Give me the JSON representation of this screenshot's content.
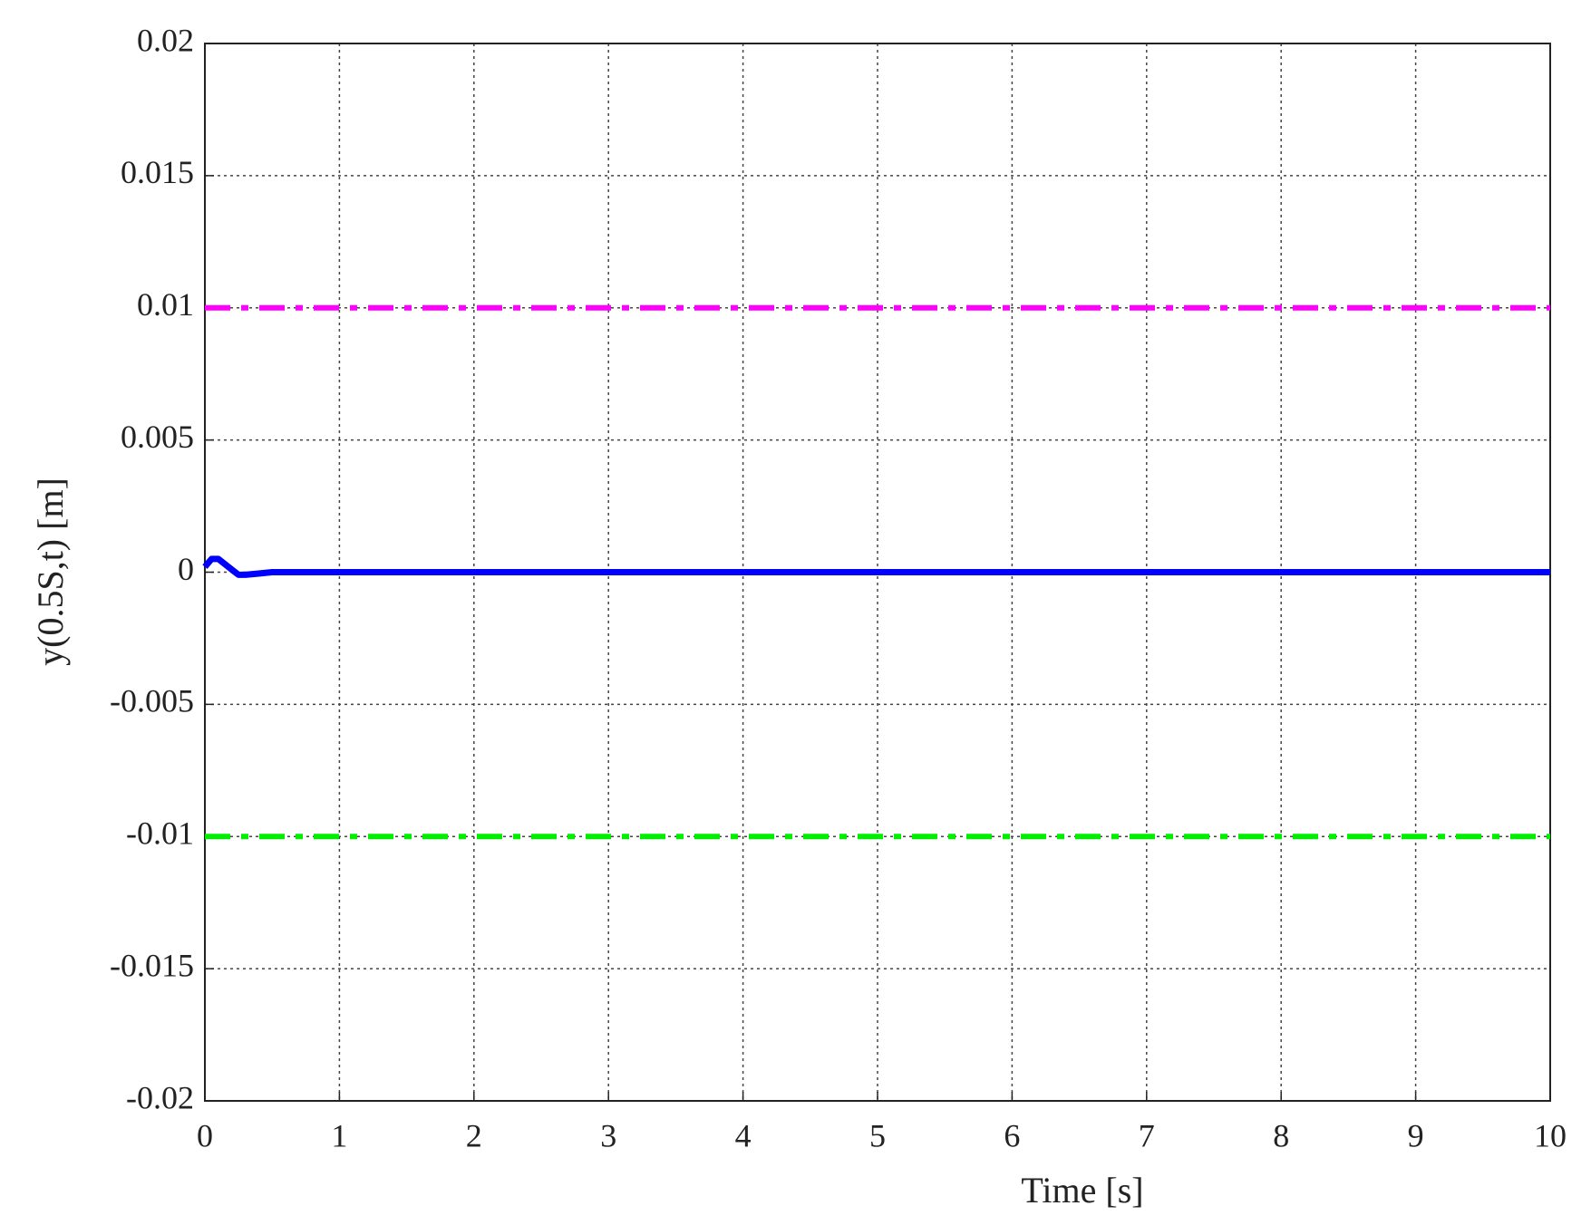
{
  "chart_data": {
    "type": "line",
    "xlabel": "Time [s]",
    "ylabel": "y(0.5S,t) [m]",
    "x": [
      0,
      0.05,
      0.1,
      0.15,
      0.2,
      0.25,
      0.3,
      0.4,
      0.5,
      0.6,
      1,
      2,
      3,
      4,
      5,
      6,
      7,
      8,
      9,
      10
    ],
    "series": [
      {
        "color": "#ff00ff",
        "linestyle": "dashdot",
        "values": [
          0.01,
          0.01,
          0.01,
          0.01,
          0.01,
          0.01,
          0.01,
          0.01,
          0.01,
          0.01,
          0.01,
          0.01,
          0.01,
          0.01,
          0.01,
          0.01,
          0.01,
          0.01,
          0.01,
          0.01
        ]
      },
      {
        "color": "#00ee00",
        "linestyle": "dashdot",
        "values": [
          -0.01,
          -0.01,
          -0.01,
          -0.01,
          -0.01,
          -0.01,
          -0.01,
          -0.01,
          -0.01,
          -0.01,
          -0.01,
          -0.01,
          -0.01,
          -0.01,
          -0.01,
          -0.01,
          -0.01,
          -0.01,
          -0.01,
          -0.01
        ]
      },
      {
        "color": "#0000ff",
        "linestyle": "solid",
        "values": [
          0.0002,
          0.0005,
          0.0005,
          0.0003,
          0.0001,
          -0.0001,
          -0.0001,
          -5e-05,
          0,
          0,
          0,
          0,
          0,
          0,
          0,
          0,
          0,
          0,
          0,
          0
        ]
      }
    ],
    "xlim": [
      0,
      10
    ],
    "xticks": [
      0,
      1,
      2,
      3,
      4,
      5,
      6,
      7,
      8,
      9,
      10
    ],
    "ylim": [
      -0.02,
      0.02
    ],
    "yticks": [
      -0.02,
      -0.015,
      -0.01,
      -0.005,
      0,
      0.005,
      0.01,
      0.015,
      0.02
    ],
    "grid": true
  }
}
